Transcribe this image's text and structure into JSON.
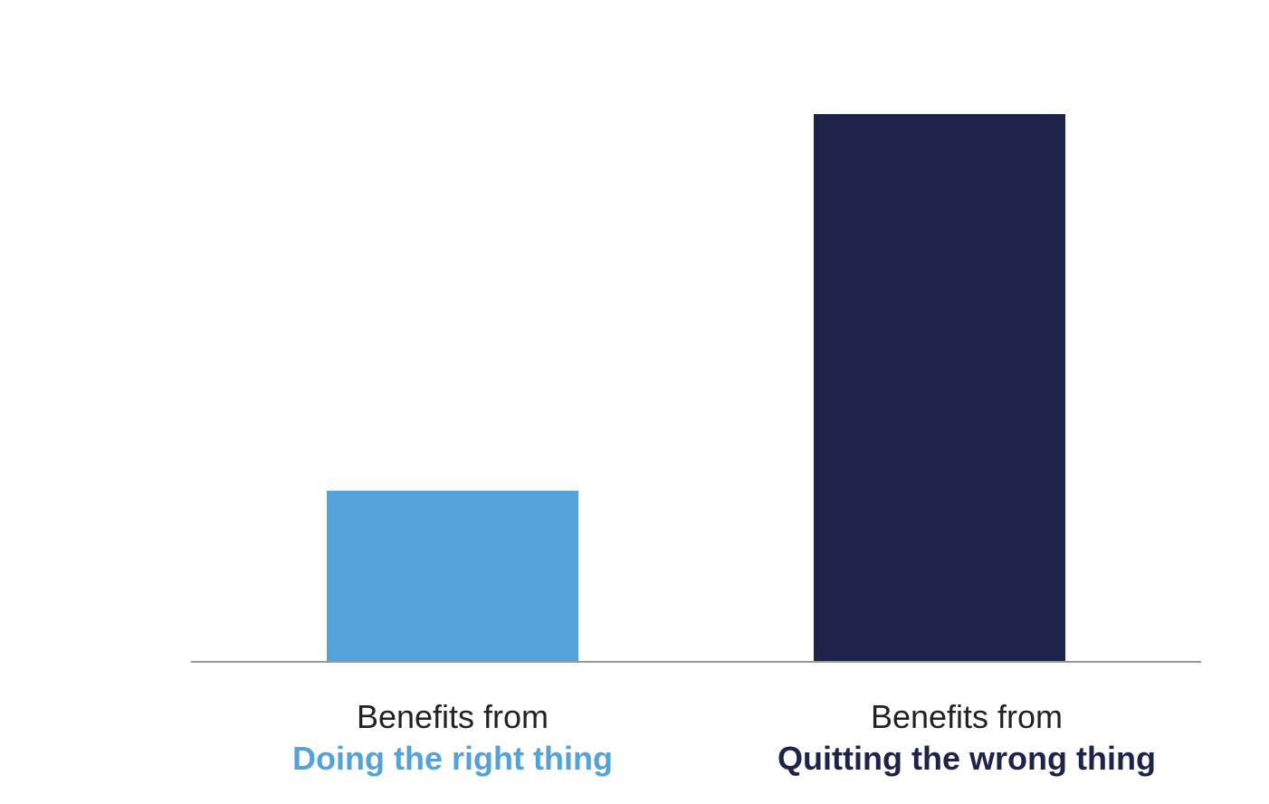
{
  "chart_data": {
    "type": "bar",
    "title": "",
    "xlabel": "",
    "ylabel": "",
    "categories": [
      {
        "line1": "Benefits from",
        "line2": "Doing the right thing",
        "color": "#53A2D9"
      },
      {
        "line1": "Benefits from",
        "line2": "Quitting the wrong thing",
        "color": "#1E234B"
      }
    ],
    "values": [
      1,
      3.2
    ],
    "ylim": [
      0,
      3.2
    ],
    "grid": false,
    "legend": "none",
    "axis_color": "#999999"
  }
}
